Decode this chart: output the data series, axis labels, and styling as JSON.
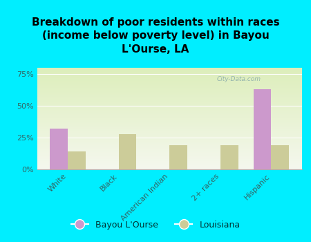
{
  "title": "Breakdown of poor residents within races\n(income below poverty level) in Bayou\nL'Ourse, LA",
  "categories": [
    "White",
    "Black",
    "American Indian",
    "2+ races",
    "Hispanic"
  ],
  "bayou_values": [
    32,
    0,
    0,
    0,
    63
  ],
  "louisiana_values": [
    14,
    28,
    19,
    19,
    19
  ],
  "bayou_color": "#cc99cc",
  "louisiana_color": "#cccc99",
  "background_outer": "#00eeff",
  "background_inner_top": "#ddeebb",
  "background_inner_bottom": "#f5f8ee",
  "yticks": [
    0,
    25,
    50,
    75
  ],
  "ylabels": [
    "0%",
    "25%",
    "50%",
    "75%"
  ],
  "ylim": [
    0,
    80
  ],
  "bar_width": 0.35,
  "legend_label_bayou": "Bayou L'Ourse",
  "legend_label_louisiana": "Louisiana",
  "watermark": "City-Data.com",
  "title_fontsize": 11,
  "tick_fontsize": 8,
  "legend_fontsize": 9,
  "ytick_color": "#336666",
  "xtick_color": "#336666"
}
